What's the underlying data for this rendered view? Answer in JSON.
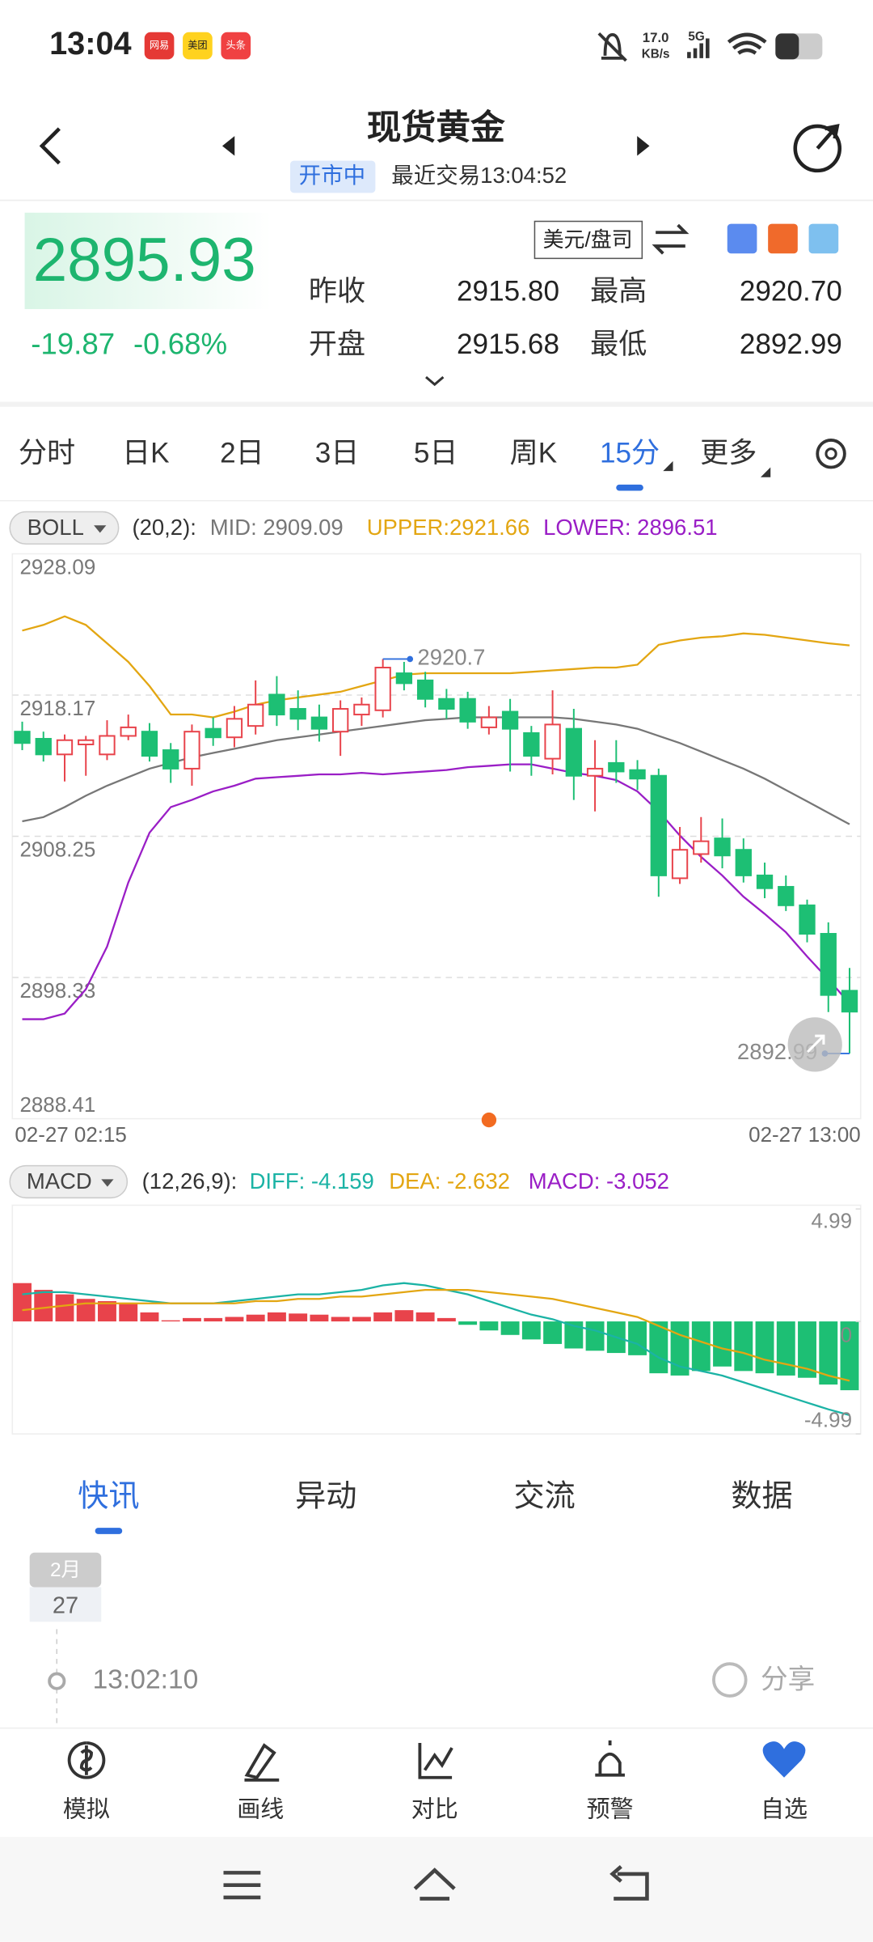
{
  "status_bar": {
    "time": "13:04",
    "app_icons": [
      "网易",
      "美团",
      "头条"
    ],
    "net_speed": "17.0",
    "net_unit": "KB/s",
    "network": "5G"
  },
  "header": {
    "title": "现货黄金",
    "status": "开市中",
    "last_trade": "最近交易13:04:52"
  },
  "quote": {
    "price": "2895.93",
    "change": "-19.87",
    "change_pct": "-0.68%",
    "unit": "美元/盘司",
    "stats": [
      {
        "label": "昨收",
        "value": "2915.80"
      },
      {
        "label": "最高",
        "value": "2920.70"
      },
      {
        "label": "开盘",
        "value": "2915.68"
      },
      {
        "label": "最低",
        "value": "2892.99"
      }
    ]
  },
  "periods": {
    "items": [
      "分时",
      "日K",
      "2日",
      "3日",
      "5日",
      "周K",
      "15分",
      "更多"
    ],
    "active": 6
  },
  "boll": {
    "name": "BOLL",
    "params": "(20,2):",
    "mid": "MID: 2909.09",
    "upper": "UPPER:2921.66",
    "lower": "LOWER: 2896.51"
  },
  "macd": {
    "name": "MACD",
    "params": "(12,26,9):",
    "diff": "DIFF: -4.159",
    "dea": "DEA: -2.632",
    "macd": "MACD: -3.052"
  },
  "chart_data": [
    {
      "type": "candlestick",
      "x_start": "02-27 02:15",
      "x_end": "02-27 13:00",
      "ylim": [
        2888.41,
        2928.09
      ],
      "yticks": [
        2888.41,
        2898.33,
        2908.25,
        2918.17,
        2928.09
      ],
      "grid": true,
      "up_color": "#e8434b",
      "down_color": "#1dbf74",
      "open": [
        2915.6,
        2915.1,
        2914.0,
        2914.7,
        2914.0,
        2915.3,
        2915.6,
        2914.3,
        2913.0,
        2915.8,
        2915.2,
        2916.0,
        2918.2,
        2917.2,
        2916.6,
        2915.6,
        2916.8,
        2917.1,
        2919.7,
        2919.2,
        2917.9,
        2917.9,
        2915.9,
        2917.0,
        2915.5,
        2913.7,
        2915.8,
        2912.5,
        2913.4,
        2912.9,
        2912.5,
        2905.3,
        2907.0,
        2908.1,
        2907.3,
        2905.5,
        2904.7,
        2903.4,
        2901.4,
        2897.4
      ],
      "high": [
        2916.3,
        2915.6,
        2915.4,
        2915.3,
        2916.4,
        2916.8,
        2916.2,
        2914.8,
        2916.1,
        2916.6,
        2917.4,
        2919.2,
        2919.5,
        2918.5,
        2917.5,
        2917.8,
        2918.0,
        2920.7,
        2920.5,
        2919.8,
        2918.6,
        2918.4,
        2917.4,
        2917.9,
        2916.0,
        2918.5,
        2917.2,
        2915.0,
        2915.0,
        2913.6,
        2913.0,
        2908.9,
        2909.6,
        2909.5,
        2908.1,
        2906.4,
        2905.5,
        2903.8,
        2902.2,
        2899.0
      ],
      "low": [
        2914.3,
        2913.5,
        2912.1,
        2912.5,
        2913.6,
        2915.0,
        2913.5,
        2912.0,
        2911.8,
        2914.6,
        2914.5,
        2915.4,
        2916.0,
        2915.7,
        2914.9,
        2913.9,
        2916.0,
        2916.6,
        2918.5,
        2917.3,
        2916.5,
        2915.8,
        2915.4,
        2912.8,
        2912.5,
        2912.6,
        2910.8,
        2910.0,
        2912.0,
        2911.5,
        2904.0,
        2904.9,
        2906.4,
        2906.0,
        2905.0,
        2903.9,
        2903.0,
        2900.8,
        2895.9,
        2892.99
      ],
      "close": [
        2914.8,
        2914.0,
        2915.0,
        2915.0,
        2915.3,
        2915.9,
        2913.9,
        2913.0,
        2915.6,
        2915.2,
        2916.5,
        2917.5,
        2916.8,
        2916.5,
        2915.8,
        2917.2,
        2917.5,
        2920.1,
        2919.0,
        2917.9,
        2917.2,
        2916.3,
        2916.6,
        2915.8,
        2913.9,
        2916.1,
        2912.5,
        2913.0,
        2912.8,
        2912.3,
        2905.5,
        2907.3,
        2907.9,
        2906.9,
        2905.5,
        2904.6,
        2903.4,
        2901.4,
        2897.1,
        2895.93
      ],
      "series": [
        {
          "name": "UPPER",
          "color": "#e3a612",
          "values": [
            2922.7,
            2923.1,
            2923.7,
            2923.1,
            2921.8,
            2920.5,
            2918.8,
            2916.8,
            2916.8,
            2916.6,
            2917.0,
            2917.5,
            2917.8,
            2918.0,
            2918.2,
            2918.4,
            2918.8,
            2919.2,
            2919.6,
            2919.7,
            2919.7,
            2919.7,
            2919.7,
            2919.7,
            2919.8,
            2919.9,
            2920.0,
            2920.1,
            2920.1,
            2920.3,
            2921.7,
            2922.0,
            2922.2,
            2922.3,
            2922.5,
            2922.4,
            2922.2,
            2922.0,
            2921.8,
            2921.66
          ]
        },
        {
          "name": "MID",
          "color": "#777777",
          "values": [
            2909.3,
            2909.6,
            2910.3,
            2911.1,
            2911.8,
            2912.4,
            2913.0,
            2913.4,
            2913.8,
            2914.1,
            2914.4,
            2914.7,
            2915.0,
            2915.2,
            2915.4,
            2915.6,
            2915.8,
            2916.0,
            2916.2,
            2916.4,
            2916.5,
            2916.6,
            2916.6,
            2916.6,
            2916.6,
            2916.6,
            2916.5,
            2916.3,
            2916.1,
            2915.8,
            2915.3,
            2914.8,
            2914.2,
            2913.6,
            2913.0,
            2912.3,
            2911.5,
            2910.7,
            2909.9,
            2909.09
          ]
        },
        {
          "name": "LOWER",
          "color": "#9a1ec6",
          "values": [
            2895.4,
            2895.4,
            2895.8,
            2897.5,
            2900.5,
            2905.0,
            2908.5,
            2910.3,
            2910.8,
            2911.4,
            2911.8,
            2912.3,
            2912.4,
            2912.5,
            2912.6,
            2912.6,
            2912.7,
            2912.6,
            2912.7,
            2912.8,
            2912.9,
            2913.1,
            2913.2,
            2913.3,
            2913.3,
            2913.0,
            2912.7,
            2912.5,
            2912.2,
            2911.4,
            2910.0,
            2908.3,
            2906.8,
            2905.5,
            2904.0,
            2902.8,
            2901.5,
            2899.8,
            2898.2,
            2896.51
          ]
        }
      ],
      "annotations": [
        {
          "index": 17,
          "value": 2920.7
        },
        {
          "index": 39,
          "value": 2892.99
        }
      ]
    },
    {
      "type": "macd",
      "ylim": [
        -4.99,
        4.99
      ],
      "yticks": [
        -4.99,
        0,
        4.99
      ],
      "up_color": "#e8434b",
      "down_color": "#1dbf74",
      "values": [
        1.7,
        1.4,
        1.2,
        1.0,
        0.9,
        0.8,
        0.4,
        0.05,
        0.15,
        0.15,
        0.2,
        0.3,
        0.4,
        0.35,
        0.3,
        0.2,
        0.2,
        0.4,
        0.5,
        0.4,
        0.15,
        -0.15,
        -0.4,
        -0.6,
        -0.8,
        -1.0,
        -1.2,
        -1.3,
        -1.4,
        -1.5,
        -2.3,
        -2.4,
        -2.2,
        -2.0,
        -2.2,
        -2.3,
        -2.4,
        -2.5,
        -2.8,
        -3.052
      ],
      "series": [
        {
          "name": "DIFF",
          "color": "#1bb3a5",
          "values": [
            1.2,
            1.3,
            1.3,
            1.2,
            1.1,
            1.0,
            0.9,
            0.8,
            0.8,
            0.8,
            0.9,
            1.0,
            1.1,
            1.2,
            1.2,
            1.3,
            1.4,
            1.6,
            1.7,
            1.6,
            1.4,
            1.2,
            0.9,
            0.6,
            0.3,
            0.1,
            -0.2,
            -0.4,
            -0.7,
            -1.0,
            -1.6,
            -2.0,
            -2.2,
            -2.4,
            -2.7,
            -3.0,
            -3.3,
            -3.6,
            -3.9,
            -4.159
          ]
        },
        {
          "name": "DEA",
          "color": "#e3a612",
          "values": [
            0.5,
            0.6,
            0.7,
            0.8,
            0.8,
            0.8,
            0.8,
            0.8,
            0.8,
            0.8,
            0.8,
            0.9,
            0.9,
            1.0,
            1.0,
            1.1,
            1.1,
            1.2,
            1.3,
            1.4,
            1.4,
            1.4,
            1.3,
            1.2,
            1.1,
            1.0,
            0.8,
            0.6,
            0.4,
            0.2,
            -0.2,
            -0.6,
            -0.9,
            -1.2,
            -1.4,
            -1.7,
            -1.9,
            -2.1,
            -2.4,
            -2.632
          ]
        }
      ]
    }
  ],
  "news": {
    "tabs": [
      "快讯",
      "异动",
      "交流",
      "数据"
    ],
    "active": 0,
    "month": "2月",
    "day": "27",
    "time": "13:02:10",
    "share": "分享"
  },
  "toolbar": [
    "模拟",
    "画线",
    "对比",
    "预警",
    "自选"
  ]
}
